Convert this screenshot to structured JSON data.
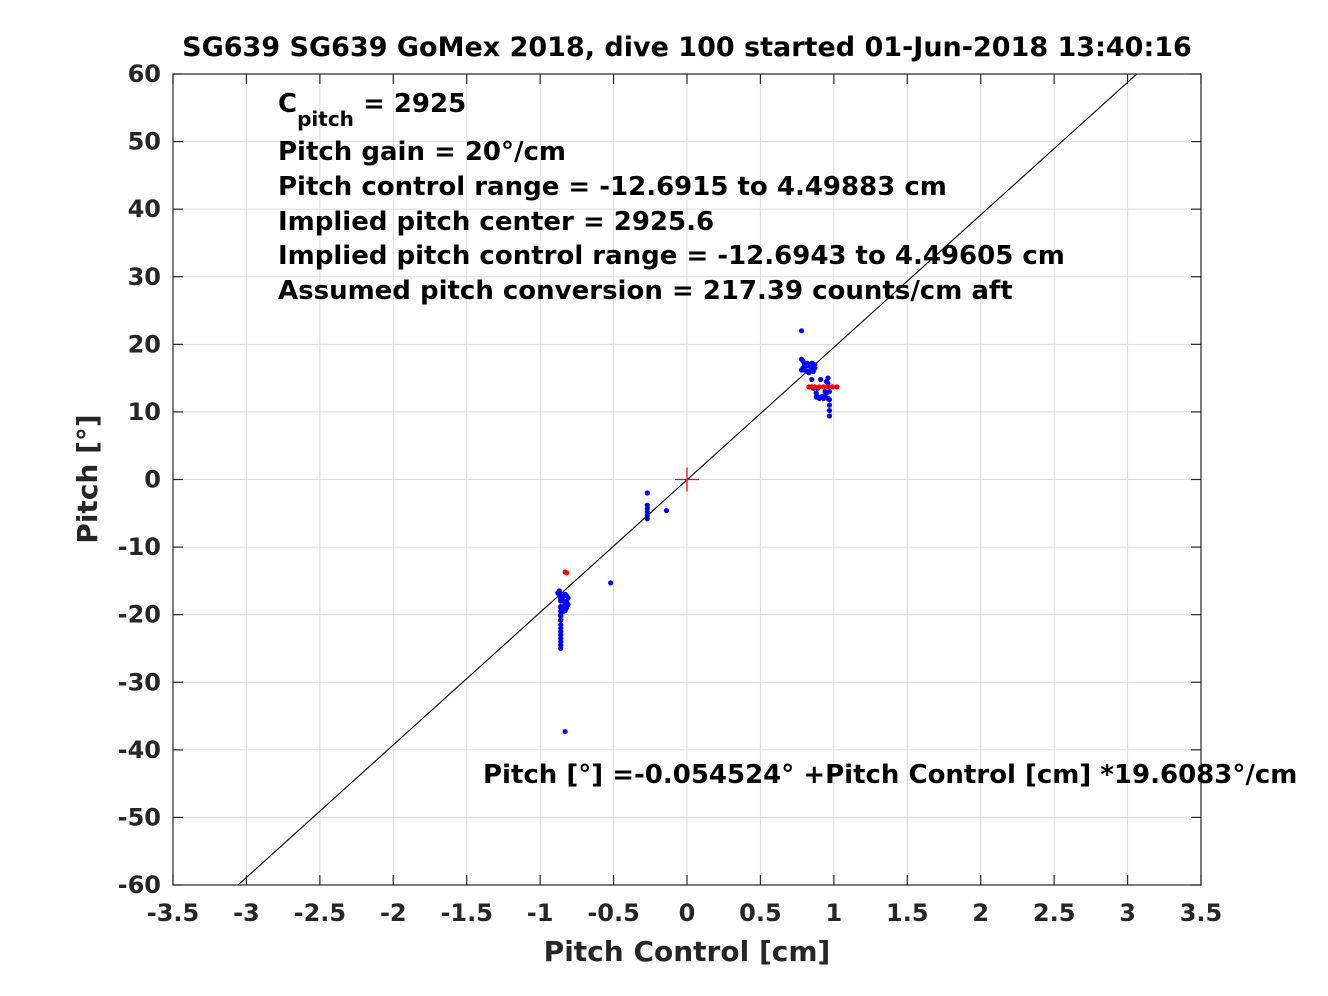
{
  "chart_data": {
    "type": "scatter",
    "title": "SG639 SG639 GoMex 2018, dive 100 started 01-Jun-2018 13:40:16",
    "xlabel": "Pitch Control [cm]",
    "ylabel": "Pitch [°]",
    "xlim": [
      -3.5,
      3.5
    ],
    "ylim": [
      -60,
      60
    ],
    "xticks": [
      -3.5,
      -3,
      -2.5,
      -2,
      -1.5,
      -1,
      -0.5,
      0,
      0.5,
      1,
      1.5,
      2,
      2.5,
      3,
      3.5
    ],
    "xtick_labels": [
      "-3.5",
      "-3",
      "-2.5",
      "-2",
      "-1.5",
      "-1",
      "-0.5",
      "0",
      "0.5",
      "1",
      "1.5",
      "2",
      "2.5",
      "3",
      "3.5"
    ],
    "yticks": [
      -60,
      -50,
      -40,
      -30,
      -20,
      -10,
      0,
      10,
      20,
      30,
      40,
      50,
      60
    ],
    "ytick_labels": [
      "-60",
      "-50",
      "-40",
      "-30",
      "-20",
      "-10",
      "0",
      "10",
      "20",
      "30",
      "40",
      "50",
      "60"
    ],
    "grid": true,
    "annotations": {
      "c_pitch_main": "C",
      "c_pitch_sub": "pitch",
      "c_pitch_value": " = 2925",
      "pitch_gain": "Pitch gain = 20°/cm",
      "pitch_control_range": "Pitch control range = -12.6915 to 4.49883 cm",
      "implied_pitch_center": "Implied pitch center = 2925.6",
      "implied_pitch_control_range": "Implied pitch control range = -12.6943 to 4.49605 cm",
      "assumed_pitch_conversion": "Assumed pitch conversion = 217.39 counts/cm aft",
      "fit_equation": "Pitch [°] =-0.054524° +Pitch Control [cm] *19.6083°/cm"
    },
    "fit_line": {
      "intercept": -0.054524,
      "slope": 19.6083,
      "color": "#000000"
    },
    "center_marker": {
      "x": 0,
      "y": 0,
      "color": "#ff0000"
    },
    "series": [
      {
        "color": "#0000ff",
        "x": [
          -0.88,
          -0.87,
          -0.87,
          -0.86,
          -0.86,
          -0.86,
          -0.86,
          -0.86,
          -0.86,
          -0.86,
          -0.86,
          -0.86,
          -0.86,
          -0.86,
          -0.86,
          -0.86,
          -0.86,
          -0.86,
          -0.86,
          -0.86,
          -0.85,
          -0.85,
          -0.84,
          -0.84,
          -0.83,
          -0.83,
          -0.83,
          -0.82,
          -0.82,
          -0.82,
          -0.81,
          -0.81,
          -0.84,
          -0.83,
          -0.52,
          -0.27,
          -0.27,
          -0.27,
          -0.27,
          -0.27,
          -0.27,
          -0.14,
          0.78,
          0.78,
          0.78,
          0.79,
          0.79,
          0.8,
          0.8,
          0.81,
          0.82,
          0.82,
          0.83,
          0.83,
          0.84,
          0.84,
          0.85,
          0.85,
          0.85,
          0.86,
          0.86,
          0.87,
          0.87,
          0.88,
          0.88,
          0.89,
          0.89,
          0.9,
          0.91,
          0.92,
          0.93,
          0.94,
          0.94,
          0.95,
          0.95,
          0.96,
          0.96,
          0.96,
          0.97,
          0.97,
          0.97,
          0.97,
          0.97
        ],
        "y": [
          -16.8,
          -16.5,
          -17.0,
          -17.5,
          -18.0,
          -18.8,
          -19.5,
          -20.2,
          -20.8,
          -21.5,
          -22.0,
          -22.5,
          -23.0,
          -23.5,
          -24.0,
          -24.5,
          -25.0,
          -20.0,
          -19.0,
          -17.8,
          -17.2,
          -17.6,
          -18.0,
          -18.8,
          -19.4,
          -17.0,
          -18.5,
          -17.2,
          -18.0,
          -19.0,
          -17.5,
          -18.5,
          -19.5,
          -37.3,
          -15.3,
          -2.0,
          -3.8,
          -4.3,
          -4.8,
          -5.3,
          -5.8,
          -4.6,
          22.0,
          16.2,
          17.8,
          16.5,
          17.5,
          17.0,
          16.2,
          16.8,
          16.0,
          17.2,
          15.8,
          16.8,
          16.0,
          17.0,
          14.8,
          16.5,
          17.2,
          13.5,
          16.0,
          16.5,
          17.0,
          12.8,
          12.2,
          13.5,
          12.2,
          12.0,
          14.8,
          12.3,
          12.0,
          13.0,
          12.2,
          14.5,
          12.8,
          15.0,
          14.2,
          12.0,
          13.0,
          11.8,
          11.0,
          10.2,
          9.4
        ]
      },
      {
        "color": "#ff0000",
        "x": [
          -0.83,
          -0.82,
          0.83,
          0.85,
          0.87,
          0.9,
          0.93,
          0.96,
          0.99,
          1.02
        ],
        "y": [
          -13.7,
          -13.8,
          13.7,
          13.7,
          13.7,
          13.7,
          13.7,
          13.7,
          13.7,
          13.7
        ]
      }
    ]
  }
}
